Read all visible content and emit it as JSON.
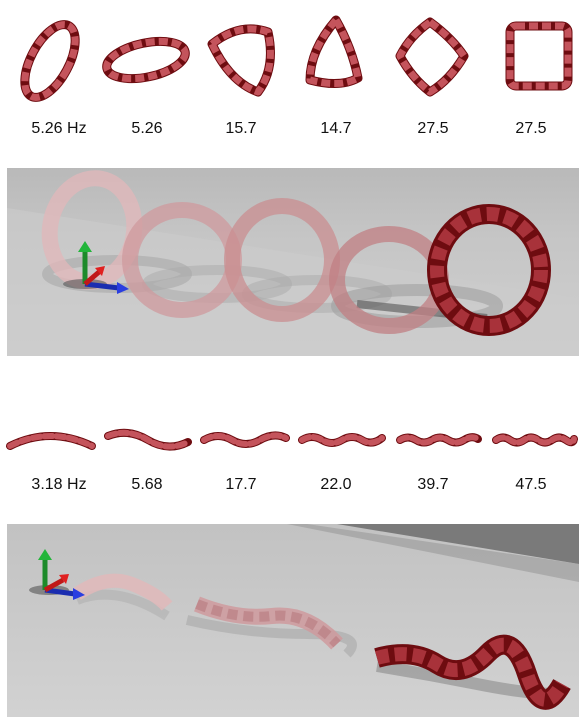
{
  "ring_modes": {
    "frequency_labels": [
      "5.26 Hz",
      "5.26",
      "15.7",
      "14.7",
      "27.5",
      "27.5"
    ]
  },
  "rod_modes": {
    "frequency_labels": [
      "3.18 Hz",
      "5.68",
      "17.7",
      "22.0",
      "39.7",
      "47.5"
    ]
  },
  "colors": {
    "segment_dark": "#6e0c10",
    "segment_mid": "#a8323a",
    "segment_light": "#d26d73",
    "panel_floor": "#c9c9c9",
    "panel_back": "#b5b5b5"
  },
  "icons": {
    "axis_gizmo": "xyz-axes-icon"
  }
}
